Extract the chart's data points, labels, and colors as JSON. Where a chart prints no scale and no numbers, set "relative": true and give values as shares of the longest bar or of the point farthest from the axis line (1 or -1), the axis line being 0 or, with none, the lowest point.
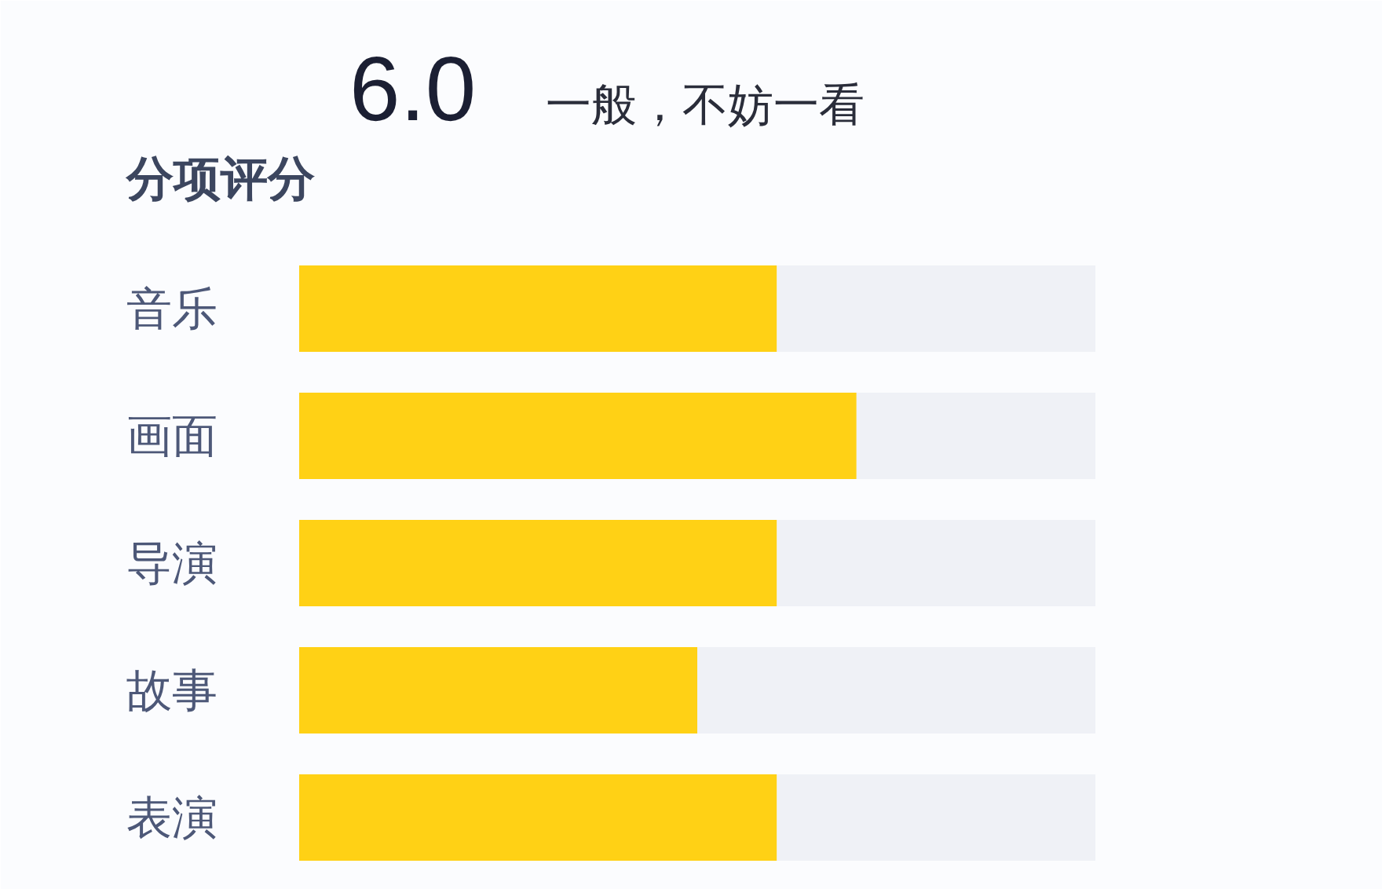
{
  "chart_data": {
    "type": "bar",
    "orientation": "horizontal",
    "stacked": true,
    "relative": true,
    "title": "6.0",
    "subtitle": "一般，不妨一看",
    "annotations": [
      "分项评分"
    ],
    "categories": [
      "音乐",
      "画面",
      "导演",
      "故事",
      "表演"
    ],
    "series": [
      {
        "color": "#ffd115",
        "values": [
          0.6,
          0.7,
          0.6,
          0.5,
          0.6
        ]
      },
      {
        "color": "#eff1f6",
        "values": [
          0.4,
          0.3,
          0.4,
          0.5,
          0.4
        ]
      }
    ]
  }
}
